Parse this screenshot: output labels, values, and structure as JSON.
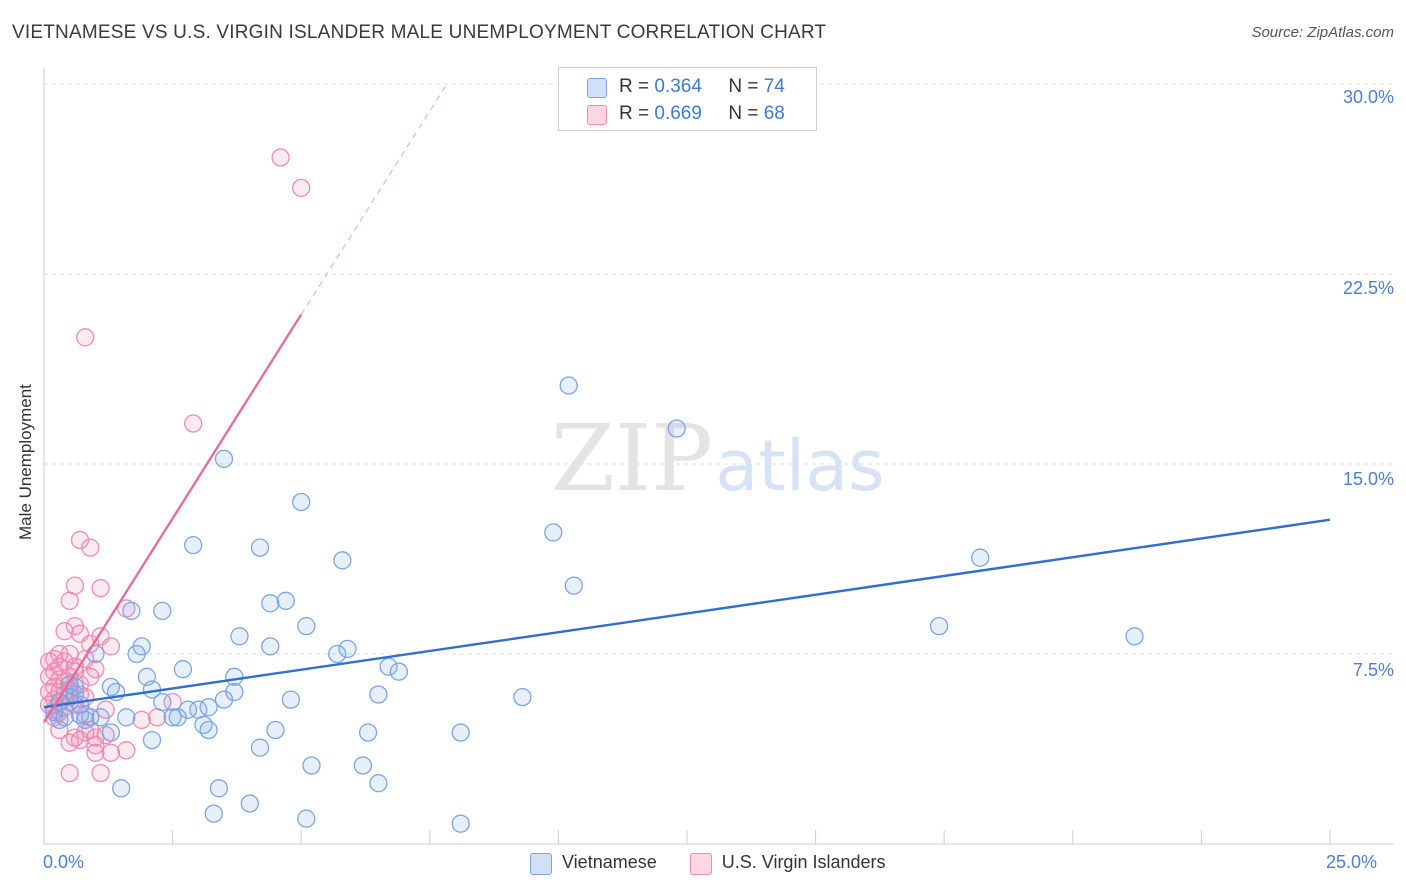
{
  "title": "VIETNAMESE VS U.S. VIRGIN ISLANDER MALE UNEMPLOYMENT CORRELATION CHART",
  "source": "Source: ZipAtlas.com",
  "watermark": {
    "zip": "ZIP",
    "atlas": "atlas"
  },
  "colors": {
    "blue": "#7aa6e8",
    "blue_fill": "rgba(122,166,232,0.18)",
    "blue_line": "#2e6fd0",
    "pink": "#f08bb0",
    "pink_fill": "rgba(240,139,176,0.18)",
    "pink_line": "#e46e99",
    "tick_text": "#4a7fd4",
    "grid": "#dddddd"
  },
  "legend": {
    "rows": [
      {
        "r_label": "R =",
        "r_value": "0.364",
        "n_label": "N =",
        "n_value": "74"
      },
      {
        "r_label": "R =",
        "r_value": "0.669",
        "n_label": "N =",
        "n_value": "68"
      }
    ],
    "series_names": [
      "Vietnamese",
      "U.S. Virgin Islanders"
    ]
  },
  "chart_data": {
    "type": "scatter",
    "title": "VIETNAMESE VS U.S. VIRGIN ISLANDER MALE UNEMPLOYMENT CORRELATION CHART",
    "xlabel": "",
    "ylabel": "Male Unemployment",
    "xlim": [
      0,
      25
    ],
    "ylim": [
      0,
      30
    ],
    "x_tick_labels": [
      "0.0%",
      "25.0%"
    ],
    "y_ticks": [
      7.5,
      15.0,
      22.5,
      30.0
    ],
    "y_tick_labels": [
      "7.5%",
      "15.0%",
      "22.5%",
      "30.0%"
    ],
    "grid": true,
    "series": [
      {
        "name": "Vietnamese",
        "R": 0.364,
        "N": 74,
        "trend": {
          "x": [
            0.0,
            25.0
          ],
          "y": [
            5.4,
            12.8
          ]
        },
        "points": [
          [
            0.2,
            5.2
          ],
          [
            0.3,
            5.6
          ],
          [
            0.3,
            4.9
          ],
          [
            0.4,
            5.0
          ],
          [
            0.5,
            6.3
          ],
          [
            0.6,
            5.9
          ],
          [
            0.6,
            6.2
          ],
          [
            0.7,
            5.5
          ],
          [
            0.7,
            5.1
          ],
          [
            0.8,
            4.9
          ],
          [
            0.9,
            5.0
          ],
          [
            1.0,
            7.5
          ],
          [
            1.1,
            5.0
          ],
          [
            1.3,
            4.4
          ],
          [
            1.3,
            6.2
          ],
          [
            1.4,
            6.0
          ],
          [
            1.5,
            2.2
          ],
          [
            1.6,
            5.0
          ],
          [
            1.7,
            9.2
          ],
          [
            1.8,
            7.5
          ],
          [
            1.9,
            7.8
          ],
          [
            2.0,
            6.6
          ],
          [
            2.1,
            4.1
          ],
          [
            2.1,
            6.1
          ],
          [
            2.3,
            5.6
          ],
          [
            2.3,
            9.2
          ],
          [
            2.5,
            5.0
          ],
          [
            2.6,
            5.0
          ],
          [
            2.7,
            6.9
          ],
          [
            2.8,
            5.3
          ],
          [
            2.9,
            11.8
          ],
          [
            3.0,
            5.3
          ],
          [
            3.1,
            4.7
          ],
          [
            3.2,
            5.4
          ],
          [
            3.2,
            4.5
          ],
          [
            3.3,
            1.2
          ],
          [
            3.4,
            2.2
          ],
          [
            3.5,
            5.7
          ],
          [
            3.5,
            15.2
          ],
          [
            3.7,
            6.6
          ],
          [
            3.7,
            6.0
          ],
          [
            3.8,
            8.2
          ],
          [
            4.0,
            1.6
          ],
          [
            4.2,
            11.7
          ],
          [
            4.2,
            3.8
          ],
          [
            4.4,
            7.8
          ],
          [
            4.4,
            9.5
          ],
          [
            4.5,
            4.5
          ],
          [
            4.7,
            9.6
          ],
          [
            4.8,
            5.7
          ],
          [
            5.0,
            13.5
          ],
          [
            5.1,
            8.6
          ],
          [
            5.1,
            1.0
          ],
          [
            5.2,
            3.1
          ],
          [
            5.7,
            7.5
          ],
          [
            5.8,
            11.2
          ],
          [
            5.9,
            7.7
          ],
          [
            6.2,
            3.1
          ],
          [
            6.3,
            4.4
          ],
          [
            6.5,
            5.9
          ],
          [
            6.5,
            2.4
          ],
          [
            6.7,
            7.0
          ],
          [
            6.9,
            6.8
          ],
          [
            8.1,
            4.4
          ],
          [
            8.1,
            0.8
          ],
          [
            9.3,
            5.8
          ],
          [
            9.9,
            12.3
          ],
          [
            10.2,
            18.1
          ],
          [
            10.3,
            10.2
          ],
          [
            12.3,
            16.4
          ],
          [
            17.4,
            8.6
          ],
          [
            18.2,
            11.3
          ],
          [
            21.2,
            8.2
          ],
          [
            0.5,
            5.8
          ]
        ]
      },
      {
        "name": "U.S. Virgin Islanders",
        "R": 0.669,
        "N": 68,
        "trend": {
          "x": [
            0.0,
            5.0
          ],
          "y": [
            4.8,
            20.9
          ]
        },
        "trend_dashed": {
          "x": [
            5.0,
            7.8
          ],
          "y": [
            20.9,
            29.9
          ]
        },
        "points": [
          [
            0.1,
            5.5
          ],
          [
            0.1,
            6.0
          ],
          [
            0.1,
            6.6
          ],
          [
            0.1,
            7.2
          ],
          [
            0.2,
            5.0
          ],
          [
            0.2,
            5.3
          ],
          [
            0.2,
            5.7
          ],
          [
            0.2,
            6.2
          ],
          [
            0.2,
            6.8
          ],
          [
            0.2,
            7.3
          ],
          [
            0.3,
            4.5
          ],
          [
            0.3,
            5.2
          ],
          [
            0.3,
            5.6
          ],
          [
            0.3,
            6.0
          ],
          [
            0.3,
            6.5
          ],
          [
            0.3,
            7.0
          ],
          [
            0.3,
            7.5
          ],
          [
            0.4,
            5.4
          ],
          [
            0.4,
            5.9
          ],
          [
            0.4,
            6.4
          ],
          [
            0.4,
            7.2
          ],
          [
            0.4,
            8.4
          ],
          [
            0.5,
            4.0
          ],
          [
            0.5,
            5.6
          ],
          [
            0.5,
            6.1
          ],
          [
            0.5,
            6.6
          ],
          [
            0.5,
            7.5
          ],
          [
            0.5,
            9.6
          ],
          [
            0.5,
            2.8
          ],
          [
            0.6,
            4.2
          ],
          [
            0.6,
            5.5
          ],
          [
            0.6,
            6.8
          ],
          [
            0.6,
            8.6
          ],
          [
            0.6,
            10.2
          ],
          [
            0.6,
            7.0
          ],
          [
            0.7,
            4.1
          ],
          [
            0.7,
            5.9
          ],
          [
            0.7,
            6.3
          ],
          [
            0.7,
            8.3
          ],
          [
            0.7,
            12.0
          ],
          [
            0.8,
            4.4
          ],
          [
            0.8,
            5.1
          ],
          [
            0.8,
            5.8
          ],
          [
            0.8,
            20.0
          ],
          [
            0.8,
            7.3
          ],
          [
            0.9,
            4.5
          ],
          [
            0.9,
            6.6
          ],
          [
            0.9,
            7.9
          ],
          [
            0.9,
            11.7
          ],
          [
            1.0,
            3.9
          ],
          [
            1.0,
            4.2
          ],
          [
            1.0,
            6.9
          ],
          [
            1.0,
            3.6
          ],
          [
            1.1,
            8.2
          ],
          [
            1.1,
            10.1
          ],
          [
            1.1,
            2.8
          ],
          [
            1.2,
            5.3
          ],
          [
            1.2,
            4.3
          ],
          [
            1.3,
            3.6
          ],
          [
            1.3,
            7.8
          ],
          [
            1.6,
            3.7
          ],
          [
            1.6,
            9.3
          ],
          [
            1.9,
            4.9
          ],
          [
            2.2,
            5.0
          ],
          [
            2.5,
            5.6
          ],
          [
            2.9,
            16.6
          ],
          [
            4.6,
            27.1
          ],
          [
            5.0,
            25.9
          ]
        ]
      }
    ]
  }
}
